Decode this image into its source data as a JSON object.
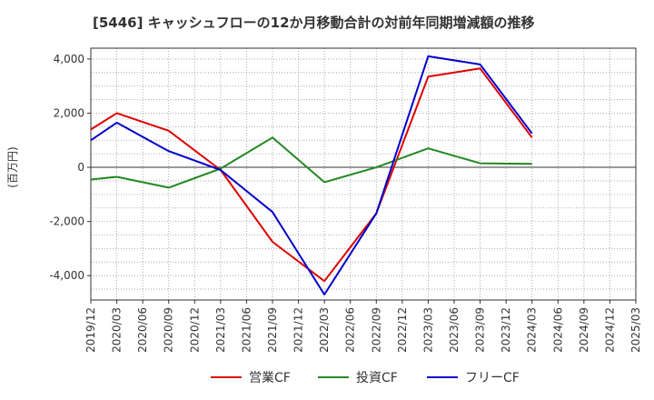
{
  "title": "[5446]  キャッシュフローの12か月移動合計の対前年同期増減額の推移",
  "chart_data": {
    "type": "line",
    "ylabel": "(百万円)",
    "ylim": [
      -4900,
      4400
    ],
    "yticks": [
      -4000,
      -2000,
      0,
      2000,
      4000
    ],
    "ytick_labels": [
      "-4,000",
      "-2,000",
      "0",
      "2,000",
      "4,000"
    ],
    "x_labels": [
      "2019/12",
      "2020/03",
      "2020/06",
      "2020/09",
      "2020/12",
      "2021/03",
      "2021/06",
      "2021/09",
      "2021/12",
      "2022/03",
      "2022/06",
      "2022/09",
      "2022/12",
      "2023/03",
      "2023/06",
      "2023/09",
      "2023/12",
      "2024/03",
      "2024/06",
      "2024/09",
      "2024/12",
      "2025/03"
    ],
    "grid": true,
    "legend_position": "bottom",
    "series": [
      {
        "name": "営業CF",
        "color": "#dd0000",
        "x": [
          "2019/12",
          "2020/03",
          "2020/09",
          "2021/03",
          "2021/09",
          "2022/03",
          "2022/09",
          "2023/03",
          "2023/09",
          "2024/03"
        ],
        "values": [
          1400,
          2000,
          1350,
          -100,
          -2750,
          -4200,
          -1700,
          3350,
          3650,
          1100
        ]
      },
      {
        "name": "投資CF",
        "color": "#228822",
        "x": [
          "2019/12",
          "2020/03",
          "2020/09",
          "2021/03",
          "2021/09",
          "2022/03",
          "2022/09",
          "2023/03",
          "2023/09",
          "2024/03"
        ],
        "values": [
          -450,
          -350,
          -750,
          -50,
          1100,
          -550,
          0,
          700,
          150,
          130
        ]
      },
      {
        "name": "フリーCF",
        "color": "#0000cc",
        "x": [
          "2019/12",
          "2020/03",
          "2020/09",
          "2021/03",
          "2021/09",
          "2022/03",
          "2022/09",
          "2023/03",
          "2023/09",
          "2024/03"
        ],
        "values": [
          1000,
          1650,
          600,
          -100,
          -1650,
          -4700,
          -1700,
          4100,
          3800,
          1250
        ]
      }
    ]
  }
}
